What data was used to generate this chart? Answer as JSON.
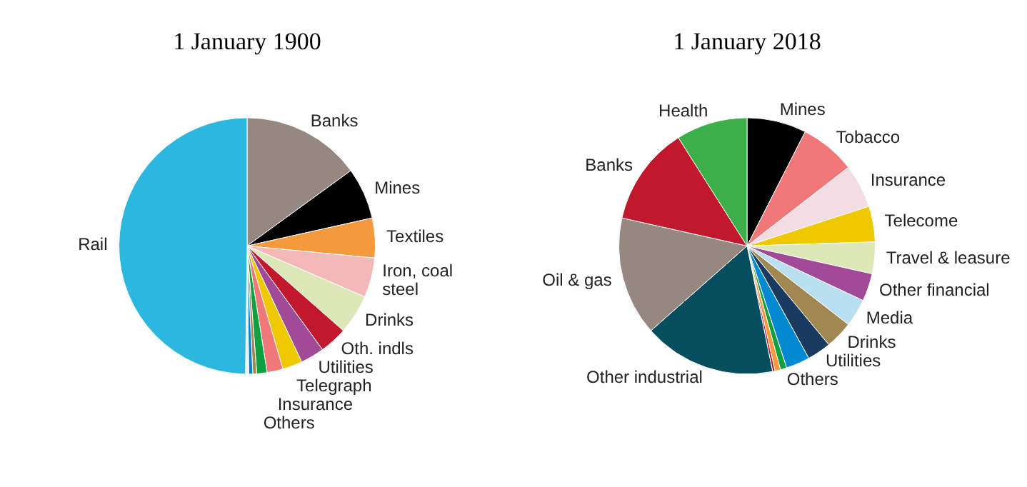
{
  "chart_data": [
    {
      "type": "pie",
      "title": "1 January 1900",
      "categories": [
        "Banks",
        "Mines",
        "Textiles",
        "Iron, coal steel",
        "Drinks",
        "Oth. indls",
        "Utilities",
        "Telegraph",
        "Insurance",
        "Others",
        null,
        null,
        null,
        "Rail"
      ],
      "values": [
        15,
        6.5,
        5,
        5,
        5,
        3.5,
        3,
        2.5,
        2,
        1.3,
        0.5,
        0.5,
        0.4,
        49.8
      ],
      "colors": [
        "#968880",
        "#000000",
        "#f59a3c",
        "#f5b8b8",
        "#dde8b8",
        "#c0182c",
        "#a04a98",
        "#f0c800",
        "#f07878",
        "#10a040",
        "#a08850",
        "#0080c8",
        "#e8f0f8",
        "#2cb8de"
      ]
    },
    {
      "type": "pie",
      "title": "1 January 2018",
      "categories": [
        "Mines",
        "Tobacco",
        "Insurance",
        "Telecome",
        "Travel & leasure",
        "Other financial",
        "Media",
        "Drinks",
        "Utilities",
        null,
        "Others",
        null,
        null,
        "Other industrial",
        "Oil & gas",
        "Banks",
        "Health"
      ],
      "values": [
        7.5,
        7,
        5.5,
        4.5,
        4,
        3.5,
        3.5,
        3.5,
        3,
        3,
        0.8,
        0.7,
        0.3,
        16.7,
        15,
        12.5,
        9
      ],
      "colors": [
        "#000000",
        "#f07878",
        "#f2dde4",
        "#f0c800",
        "#dde8b8",
        "#a04a98",
        "#b8e0f0",
        "#a08850",
        "#1a3a60",
        "#0088d0",
        "#10a040",
        "#f59a3c",
        "#c0182c",
        "#064e5e",
        "#968880",
        "#c0182c",
        "#3cb048"
      ]
    }
  ]
}
